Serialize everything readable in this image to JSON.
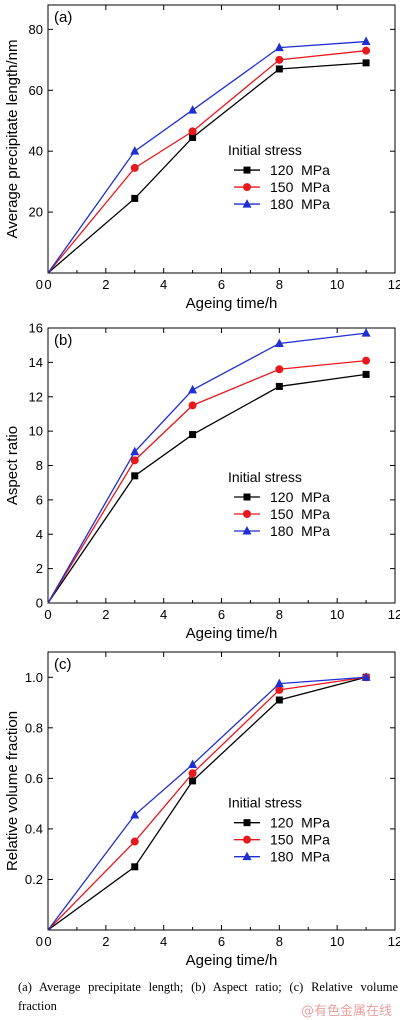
{
  "chart_data": [
    {
      "type": "line",
      "panel_label": "(a)",
      "xlabel": "Ageing time/h",
      "ylabel": "Average precipitate length/nm",
      "xlim": [
        0,
        12
      ],
      "ylim": [
        0,
        88
      ],
      "xticks": [
        0,
        2,
        4,
        6,
        8,
        10,
        12
      ],
      "yticks": [
        20,
        40,
        60,
        80
      ],
      "legend_title": "Initial stress",
      "legend_placement": "center-right",
      "grid": false,
      "series": [
        {
          "name": "120  MPa",
          "color": "#000000",
          "marker": "square",
          "x": [
            0,
            3,
            5,
            8,
            11
          ],
          "y": [
            0,
            24.5,
            44.5,
            67,
            69
          ]
        },
        {
          "name": "150  MPa",
          "color": "#e8191c",
          "marker": "circle",
          "x": [
            0,
            3,
            5,
            8,
            11
          ],
          "y": [
            0,
            34.5,
            46.5,
            70,
            73
          ]
        },
        {
          "name": "180  MPa",
          "color": "#1f2fd1",
          "marker": "triangle",
          "x": [
            0,
            3,
            5,
            8,
            11
          ],
          "y": [
            0,
            40,
            53.5,
            74,
            76
          ]
        }
      ]
    },
    {
      "type": "line",
      "panel_label": "(b)",
      "xlabel": "Ageing time/h",
      "ylabel": "Aspect ratio",
      "xlim": [
        0,
        12
      ],
      "ylim": [
        0,
        16
      ],
      "xticks": [
        0,
        2,
        4,
        6,
        8,
        10,
        12
      ],
      "yticks": [
        0,
        2,
        4,
        6,
        8,
        10,
        12,
        14,
        16
      ],
      "legend_title": "Initial stress",
      "legend_placement": "center-right",
      "grid": false,
      "series": [
        {
          "name": "120  MPa",
          "color": "#000000",
          "marker": "square",
          "x": [
            0,
            3,
            5,
            8,
            11
          ],
          "y": [
            0,
            7.4,
            9.8,
            12.6,
            13.3
          ]
        },
        {
          "name": "150  MPa",
          "color": "#e8191c",
          "marker": "circle",
          "x": [
            0,
            3,
            5,
            8,
            11
          ],
          "y": [
            0,
            8.3,
            11.5,
            13.6,
            14.1
          ]
        },
        {
          "name": "180  MPa",
          "color": "#1f2fd1",
          "marker": "triangle",
          "x": [
            0,
            3,
            5,
            8,
            11
          ],
          "y": [
            0,
            8.8,
            12.4,
            15.1,
            15.7
          ]
        }
      ]
    },
    {
      "type": "line",
      "panel_label": "(c)",
      "xlabel": "Ageing time/h",
      "ylabel": "Relative volume fraction",
      "xlim": [
        0,
        12
      ],
      "ylim": [
        0,
        1.1
      ],
      "xticks": [
        0,
        2,
        4,
        6,
        8,
        10,
        12
      ],
      "yticks": [
        0.2,
        0.4,
        0.6,
        0.8,
        1.0
      ],
      "legend_title": "Initial stress",
      "legend_placement": "center-right",
      "grid": false,
      "series": [
        {
          "name": "120  MPa",
          "color": "#000000",
          "marker": "square",
          "x": [
            0,
            3,
            5,
            8,
            11
          ],
          "y": [
            0,
            0.25,
            0.59,
            0.91,
            1.0
          ]
        },
        {
          "name": "150  MPa",
          "color": "#e8191c",
          "marker": "circle",
          "x": [
            0,
            3,
            5,
            8,
            11
          ],
          "y": [
            0,
            0.35,
            0.62,
            0.95,
            1.0
          ]
        },
        {
          "name": "180  MPa",
          "color": "#1f2fd1",
          "marker": "triangle",
          "x": [
            0,
            3,
            5,
            8,
            11
          ],
          "y": [
            0,
            0.455,
            0.655,
            0.975,
            1.0
          ]
        }
      ]
    }
  ],
  "caption": "(a) Average precipitate length; (b) Aspect ratio; (c) Relative volume fraction",
  "watermark": "@有色金属在线"
}
